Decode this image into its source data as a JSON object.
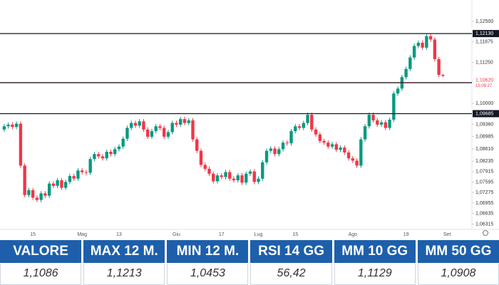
{
  "chart_data": {
    "type": "candlestick",
    "categories": [
      null,
      null,
      null,
      null,
      null,
      null,
      null,
      "15",
      null,
      null,
      null,
      null,
      null,
      null,
      null,
      null,
      null,
      null,
      null,
      "Mag",
      null,
      null,
      null,
      null,
      null,
      null,
      null,
      null,
      "13",
      null,
      null,
      null,
      null,
      null,
      null,
      null,
      null,
      null,
      null,
      null,
      null,
      null,
      "Giu",
      null,
      null,
      null,
      null,
      null,
      null,
      null,
      null,
      null,
      null,
      "17",
      null,
      null,
      null,
      null,
      null,
      null,
      null,
      null,
      "Lug",
      null,
      null,
      null,
      null,
      null,
      null,
      null,
      null,
      "15",
      null,
      null,
      null,
      null,
      null,
      null,
      null,
      null,
      null,
      null,
      null,
      null,
      null,
      "Ago",
      null,
      null,
      null,
      null,
      null,
      null,
      null,
      null,
      null,
      null,
      null,
      null,
      "19",
      null,
      null,
      null,
      null,
      null,
      null,
      null,
      null,
      null,
      "Set"
    ],
    "open": [
      1.092,
      1.093,
      1.0935,
      1.0928,
      1.0938,
      1.081,
      1.072,
      1.0735,
      1.0712,
      1.0705,
      1.0725,
      1.0718,
      1.0755,
      1.0748,
      1.0765,
      1.0742,
      1.076,
      1.0778,
      1.077,
      1.0795,
      1.079,
      1.0788,
      1.083,
      1.0845,
      1.0838,
      1.0832,
      1.0852,
      1.0845,
      1.086,
      1.0868,
      1.0892,
      1.0925,
      1.094,
      1.0932,
      1.0945,
      1.092,
      1.0898,
      1.0915,
      1.093,
      1.0925,
      1.0898,
      1.0912,
      1.094,
      1.0935,
      1.0952,
      1.094,
      1.0948,
      1.089,
      1.0855,
      1.0812,
      1.08,
      1.0785,
      1.0762,
      1.078,
      1.0775,
      1.079,
      1.077,
      1.0765,
      1.078,
      1.0758,
      1.0785,
      1.0792,
      1.076,
      1.077,
      1.082,
      1.0855,
      1.0862,
      1.0845,
      1.086,
      1.088,
      1.0878,
      1.0915,
      1.093,
      1.0925,
      1.094,
      1.0965,
      1.092,
      1.0905,
      1.0885,
      1.088,
      1.0868,
      1.0875,
      1.0858,
      1.0865,
      1.085,
      1.0832,
      1.0825,
      1.081,
      1.089,
      1.093,
      1.0965,
      1.0948,
      1.0935,
      1.0942,
      1.0925,
      1.095,
      1.103,
      1.1045,
      1.108,
      1.1105,
      1.114,
      1.1175,
      1.1185,
      1.117,
      1.1205,
      1.1195,
      1.1135,
      1.1087,
      null
    ],
    "high": [
      1.0937,
      1.0942,
      1.0942,
      1.0945,
      1.0945,
      1.0817,
      1.0742,
      1.0742,
      1.0719,
      1.0732,
      1.0732,
      1.0762,
      1.0762,
      1.0772,
      1.0772,
      1.0767,
      1.0785,
      1.0785,
      1.0802,
      1.0802,
      1.0797,
      1.0837,
      1.0852,
      1.0852,
      1.0845,
      1.0859,
      1.0859,
      1.0867,
      1.0875,
      1.0899,
      1.0932,
      1.0947,
      1.0947,
      1.0952,
      1.0952,
      1.0927,
      1.0922,
      1.0937,
      1.0937,
      1.0932,
      1.0919,
      1.0947,
      1.0947,
      1.0959,
      1.0959,
      1.0955,
      1.0955,
      1.0897,
      1.0862,
      1.0819,
      1.0807,
      1.0792,
      1.0787,
      1.0787,
      1.0797,
      1.0797,
      1.0777,
      1.0787,
      1.0787,
      1.0792,
      1.0799,
      1.0799,
      1.0777,
      1.0827,
      1.0862,
      1.0869,
      1.0869,
      1.0867,
      1.0887,
      1.0887,
      1.0922,
      1.0937,
      1.0937,
      1.0947,
      1.0972,
      1.0972,
      1.0927,
      1.0912,
      1.0892,
      1.0887,
      1.0882,
      1.0882,
      1.0872,
      1.0872,
      1.0857,
      1.0839,
      1.0832,
      1.0897,
      1.0937,
      1.0972,
      1.0972,
      1.0955,
      1.0949,
      1.0949,
      1.0957,
      1.1037,
      1.1052,
      1.1087,
      1.1112,
      1.1147,
      1.1182,
      1.1192,
      1.1192,
      1.1212,
      1.1213,
      1.1202,
      1.1142,
      1.109,
      null
    ],
    "low": [
      1.0913,
      1.0923,
      1.0921,
      1.0921,
      1.0803,
      1.0713,
      1.0713,
      1.0705,
      1.0698,
      1.0698,
      1.0711,
      1.0711,
      1.0741,
      1.0741,
      1.0735,
      1.0735,
      1.0753,
      1.0763,
      1.0763,
      1.0783,
      1.0781,
      1.0781,
      1.0823,
      1.0831,
      1.0825,
      1.0825,
      1.0838,
      1.0838,
      1.0853,
      1.0861,
      1.0885,
      1.0918,
      1.0925,
      1.0925,
      1.0913,
      1.0891,
      1.0891,
      1.0908,
      1.0918,
      1.0891,
      1.0891,
      1.0905,
      1.0928,
      1.0928,
      1.0933,
      1.0933,
      1.0883,
      1.0848,
      1.0805,
      1.0793,
      1.0778,
      1.0755,
      1.0755,
      1.0768,
      1.0768,
      1.0763,
      1.0758,
      1.0758,
      1.0751,
      1.0751,
      1.0778,
      1.0753,
      1.0753,
      1.0763,
      1.0813,
      1.0848,
      1.0838,
      1.0838,
      1.0853,
      1.0871,
      1.0871,
      1.0908,
      1.0918,
      1.0918,
      1.0933,
      1.0913,
      1.0898,
      1.0878,
      1.0873,
      1.0861,
      1.0861,
      1.0851,
      1.0851,
      1.0843,
      1.0825,
      1.0818,
      1.0803,
      1.0803,
      1.0883,
      1.0923,
      1.0941,
      1.0928,
      1.0928,
      1.0918,
      1.0918,
      1.0943,
      1.1023,
      1.1038,
      1.1073,
      1.1098,
      1.1133,
      1.1168,
      1.1163,
      1.1163,
      1.1188,
      1.1128,
      1.108,
      1.108,
      null
    ],
    "close": [
      1.093,
      1.0935,
      1.0928,
      1.0938,
      1.081,
      1.072,
      1.0735,
      1.0712,
      1.0705,
      1.0725,
      1.0718,
      1.0755,
      1.0748,
      1.0765,
      1.0742,
      1.076,
      1.0778,
      1.077,
      1.0795,
      1.079,
      1.0788,
      1.083,
      1.0845,
      1.0838,
      1.0832,
      1.0852,
      1.0845,
      1.086,
      1.0868,
      1.0892,
      1.0925,
      1.094,
      1.0932,
      1.0945,
      1.092,
      1.0898,
      1.0915,
      1.093,
      1.0925,
      1.0898,
      1.0912,
      1.094,
      1.0935,
      1.0952,
      1.094,
      1.0948,
      1.089,
      1.0855,
      1.0812,
      1.08,
      1.0785,
      1.0762,
      1.078,
      1.0775,
      1.079,
      1.077,
      1.0765,
      1.078,
      1.0758,
      1.0785,
      1.0792,
      1.076,
      1.077,
      1.082,
      1.0855,
      1.0862,
      1.0845,
      1.086,
      1.088,
      1.0878,
      1.0915,
      1.093,
      1.0925,
      1.094,
      1.0965,
      1.092,
      1.0905,
      1.0885,
      1.088,
      1.0868,
      1.0875,
      1.0858,
      1.0865,
      1.085,
      1.0832,
      1.0825,
      1.081,
      1.089,
      1.093,
      1.0965,
      1.0948,
      1.0935,
      1.0942,
      1.0925,
      1.095,
      1.103,
      1.1045,
      1.108,
      1.1105,
      1.114,
      1.1175,
      1.1185,
      1.117,
      1.1205,
      1.1195,
      1.1135,
      1.1087,
      1.1084,
      null
    ],
    "up_color": "#089981",
    "down_color": "#f23645",
    "ylim": [
      1.0615,
      1.1272
    ],
    "yticks": [
      {
        "value": 1.125,
        "label": "1,12500"
      },
      {
        "value": 1.11875,
        "label": "1,11875"
      },
      {
        "value": 1.1125,
        "label": "1,11250"
      },
      {
        "value": 1.1,
        "label": "1,10000"
      },
      {
        "value": 1.0936,
        "label": "1,09360"
      },
      {
        "value": 1.08985,
        "label": "1,08985"
      },
      {
        "value": 1.0861,
        "label": "1,08610"
      },
      {
        "value": 1.08235,
        "label": "1,08235"
      },
      {
        "value": 1.07915,
        "label": "1,07915"
      },
      {
        "value": 1.07595,
        "label": "1,07595"
      },
      {
        "value": 1.07275,
        "label": "1,07275"
      },
      {
        "value": 1.06955,
        "label": "1,06955"
      },
      {
        "value": 1.06635,
        "label": "1,06635"
      },
      {
        "value": 1.06315,
        "label": "1,06315"
      }
    ],
    "grid": false,
    "levels": [
      {
        "value": 1.1213,
        "label": "1,12130"
      },
      {
        "value": 1.1063,
        "label": "1,10630"
      },
      {
        "value": 1.09685,
        "label": "1,09685"
      }
    ],
    "level_color": "#131722",
    "price_line": {
      "value": 1.1062,
      "label": "1,10620",
      "time": "15:09:27",
      "color": "#f23645"
    }
  },
  "table": {
    "columns": [
      "VALORE",
      "MAX 12 M.",
      "MIN 12 M.",
      "RSI 14 GG",
      "MM 10 GG",
      "MM 50 GG"
    ],
    "rows": [
      [
        "1,1086",
        "1,1213",
        "1,0453",
        "56,42",
        "1,1129",
        "1,0908"
      ]
    ]
  }
}
